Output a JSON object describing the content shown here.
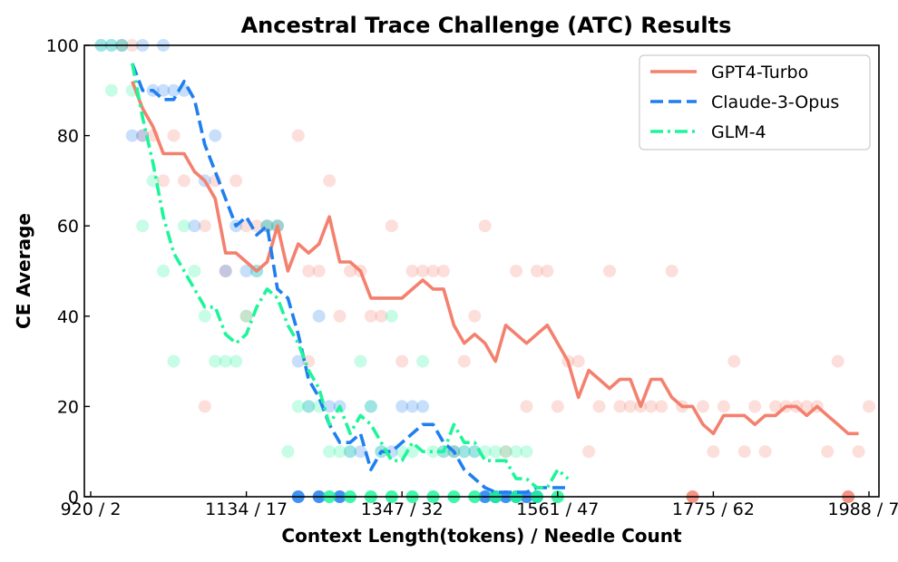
{
  "chart_data": {
    "type": "line",
    "title": "Ancestral Trace Challenge (ATC) Results",
    "xlabel": "Context Length(tokens) / Needle Count",
    "ylabel": "CE Average",
    "xlim": [
      2,
      77
    ],
    "ylim": [
      0,
      100
    ],
    "x_ticks": [
      {
        "needle": 2,
        "label": "920 / 2"
      },
      {
        "needle": 17,
        "label": "1134 / 17"
      },
      {
        "needle": 32,
        "label": "1347 / 32"
      },
      {
        "needle": 47,
        "label": "1561 / 47"
      },
      {
        "needle": 62,
        "label": "1775 / 62"
      },
      {
        "needle": 77,
        "label": "1988 / 77"
      }
    ],
    "y_ticks": [
      0,
      20,
      40,
      60,
      80,
      100
    ],
    "legend": {
      "position": "top-right"
    },
    "series": [
      {
        "name": "GPT4-Turbo",
        "color": "#f4806e",
        "dash": "solid",
        "x": [
          6,
          7,
          8,
          9,
          10,
          11,
          12,
          13,
          14,
          15,
          16,
          17,
          18,
          19,
          20,
          21,
          22,
          23,
          24,
          25,
          26,
          27,
          28,
          29,
          30,
          31,
          32,
          33,
          34,
          35,
          36,
          37,
          38,
          39,
          40,
          41,
          42,
          43,
          44,
          45,
          46,
          47,
          48,
          49,
          50,
          51,
          52,
          53,
          54,
          55,
          56,
          57,
          58,
          59,
          60,
          61,
          62,
          63,
          64,
          65,
          66,
          67,
          68,
          69,
          70,
          71,
          72,
          73,
          74,
          75,
          76
        ],
        "y": [
          92,
          86,
          82,
          76,
          76,
          76,
          72,
          70,
          66,
          54,
          54,
          52,
          50,
          52,
          60,
          50,
          56,
          54,
          56,
          62,
          52,
          52,
          50,
          44,
          44,
          44,
          44,
          46,
          48,
          46,
          46,
          38,
          34,
          36,
          34,
          30,
          38,
          36,
          34,
          36,
          38,
          34,
          30,
          22,
          28,
          26,
          24,
          26,
          26,
          20,
          26,
          26,
          22,
          20,
          20,
          16,
          14,
          18,
          18,
          18,
          16,
          18,
          18,
          20,
          20,
          18,
          20,
          18,
          16,
          14,
          14
        ],
        "points": [
          [
            5,
            100
          ],
          [
            6,
            100
          ],
          [
            7,
            80
          ],
          [
            8,
            80
          ],
          [
            9,
            70
          ],
          [
            10,
            80
          ],
          [
            11,
            70
          ],
          [
            13,
            60
          ],
          [
            14,
            70
          ],
          [
            15,
            50
          ],
          [
            16,
            70
          ],
          [
            17,
            60
          ],
          [
            18,
            60
          ],
          [
            19,
            60
          ],
          [
            20,
            60
          ],
          [
            22,
            80
          ],
          [
            23,
            50
          ],
          [
            24,
            50
          ],
          [
            25,
            70
          ],
          [
            26,
            40
          ],
          [
            27,
            50
          ],
          [
            28,
            50
          ],
          [
            29,
            40
          ],
          [
            30,
            40
          ],
          [
            31,
            60
          ],
          [
            32,
            30
          ],
          [
            33,
            50
          ],
          [
            34,
            50
          ],
          [
            35,
            50
          ],
          [
            36,
            50
          ],
          [
            37,
            10
          ],
          [
            38,
            30
          ],
          [
            39,
            40
          ],
          [
            40,
            60
          ],
          [
            41,
            0
          ],
          [
            42,
            10
          ],
          [
            43,
            50
          ],
          [
            44,
            20
          ],
          [
            45,
            50
          ],
          [
            46,
            50
          ],
          [
            47,
            20
          ],
          [
            48,
            30
          ],
          [
            49,
            30
          ],
          [
            50,
            10
          ],
          [
            51,
            20
          ],
          [
            52,
            50
          ],
          [
            53,
            20
          ],
          [
            54,
            20
          ],
          [
            55,
            20
          ],
          [
            56,
            20
          ],
          [
            57,
            20
          ],
          [
            58,
            50
          ],
          [
            59,
            20
          ],
          [
            60,
            0
          ],
          [
            61,
            20
          ],
          [
            62,
            10
          ],
          [
            63,
            20
          ],
          [
            64,
            30
          ],
          [
            65,
            10
          ],
          [
            66,
            20
          ],
          [
            67,
            10
          ],
          [
            68,
            20
          ],
          [
            69,
            20
          ],
          [
            70,
            20
          ],
          [
            71,
            20
          ],
          [
            72,
            20
          ],
          [
            73,
            10
          ],
          [
            74,
            30
          ],
          [
            75,
            0
          ],
          [
            76,
            10
          ],
          [
            77,
            20
          ],
          [
            13,
            20
          ],
          [
            17,
            40
          ],
          [
            23,
            30
          ]
        ]
      },
      {
        "name": "Claude-3-Opus",
        "color": "#1f7ff0",
        "dash": "dashed",
        "x": [
          6,
          7,
          8,
          9,
          10,
          11,
          12,
          13,
          14,
          15,
          16,
          17,
          18,
          19,
          20,
          21,
          22,
          23,
          24,
          25,
          26,
          27,
          28,
          29,
          30,
          31,
          32,
          33,
          34,
          35,
          36,
          37,
          38,
          39,
          40,
          41,
          42,
          43,
          44,
          45,
          46,
          47,
          48
        ],
        "y": [
          96,
          90,
          90,
          88,
          88,
          92,
          88,
          78,
          72,
          66,
          60,
          62,
          58,
          60,
          46,
          44,
          36,
          26,
          22,
          16,
          12,
          12,
          14,
          6,
          10,
          10,
          12,
          14,
          16,
          16,
          12,
          10,
          6,
          4,
          2,
          1,
          1,
          1,
          1,
          2,
          2,
          2,
          2
        ],
        "points": [
          [
            3,
            100
          ],
          [
            4,
            100
          ],
          [
            5,
            100
          ],
          [
            7,
            100
          ],
          [
            9,
            100
          ],
          [
            6,
            80
          ],
          [
            7,
            80
          ],
          [
            8,
            90
          ],
          [
            9,
            90
          ],
          [
            10,
            90
          ],
          [
            11,
            90
          ],
          [
            12,
            60
          ],
          [
            13,
            70
          ],
          [
            14,
            80
          ],
          [
            15,
            50
          ],
          [
            16,
            60
          ],
          [
            17,
            50
          ],
          [
            18,
            50
          ],
          [
            19,
            60
          ],
          [
            20,
            60
          ],
          [
            22,
            30
          ],
          [
            23,
            20
          ],
          [
            24,
            40
          ],
          [
            25,
            20
          ],
          [
            26,
            20
          ],
          [
            27,
            10
          ],
          [
            28,
            10
          ],
          [
            29,
            20
          ],
          [
            30,
            10
          ],
          [
            31,
            10
          ],
          [
            32,
            20
          ],
          [
            33,
            20
          ],
          [
            34,
            20
          ],
          [
            36,
            10
          ],
          [
            37,
            10
          ],
          [
            38,
            10
          ],
          [
            39,
            10
          ],
          [
            40,
            0
          ],
          [
            41,
            0
          ],
          [
            42,
            0
          ],
          [
            43,
            0
          ],
          [
            44,
            0
          ],
          [
            45,
            0
          ],
          [
            22,
            0
          ],
          [
            24,
            0
          ],
          [
            26,
            0
          ]
        ]
      },
      {
        "name": "GLM-4",
        "color": "#1ef59a",
        "dash": "dashdot",
        "x": [
          6,
          7,
          8,
          9,
          10,
          11,
          12,
          13,
          14,
          15,
          16,
          17,
          18,
          19,
          20,
          21,
          22,
          23,
          24,
          25,
          26,
          27,
          28,
          29,
          30,
          31,
          32,
          33,
          34,
          35,
          36,
          37,
          38,
          39,
          40,
          41,
          42,
          43,
          44,
          45,
          46,
          47,
          48
        ],
        "y": [
          96,
          84,
          74,
          62,
          54,
          50,
          46,
          42,
          42,
          36,
          34,
          36,
          42,
          46,
          44,
          38,
          34,
          28,
          24,
          16,
          20,
          14,
          18,
          16,
          12,
          8,
          8,
          12,
          10,
          10,
          10,
          16,
          12,
          12,
          8,
          8,
          8,
          4,
          4,
          2,
          2,
          6,
          4
        ],
        "points": [
          [
            3,
            100
          ],
          [
            4,
            100
          ],
          [
            5,
            100
          ],
          [
            6,
            90
          ],
          [
            7,
            60
          ],
          [
            8,
            70
          ],
          [
            9,
            50
          ],
          [
            10,
            30
          ],
          [
            11,
            60
          ],
          [
            12,
            50
          ],
          [
            13,
            40
          ],
          [
            14,
            30
          ],
          [
            15,
            30
          ],
          [
            16,
            30
          ],
          [
            17,
            40
          ],
          [
            18,
            50
          ],
          [
            19,
            60
          ],
          [
            20,
            60
          ],
          [
            21,
            10
          ],
          [
            22,
            20
          ],
          [
            23,
            20
          ],
          [
            24,
            20
          ],
          [
            25,
            10
          ],
          [
            26,
            10
          ],
          [
            27,
            10
          ],
          [
            28,
            30
          ],
          [
            29,
            20
          ],
          [
            30,
            10
          ],
          [
            31,
            40
          ],
          [
            32,
            10
          ],
          [
            33,
            10
          ],
          [
            34,
            30
          ],
          [
            35,
            10
          ],
          [
            36,
            10
          ],
          [
            37,
            10
          ],
          [
            38,
            10
          ],
          [
            39,
            10
          ],
          [
            40,
            10
          ],
          [
            41,
            10
          ],
          [
            42,
            10
          ],
          [
            43,
            10
          ],
          [
            44,
            10
          ],
          [
            4,
            90
          ],
          [
            25,
            0
          ],
          [
            27,
            0
          ],
          [
            29,
            0
          ],
          [
            31,
            0
          ],
          [
            33,
            0
          ],
          [
            35,
            0
          ],
          [
            37,
            0
          ],
          [
            39,
            0
          ],
          [
            41,
            0
          ],
          [
            43,
            0
          ],
          [
            45,
            0
          ],
          [
            47,
            0
          ]
        ]
      }
    ]
  }
}
